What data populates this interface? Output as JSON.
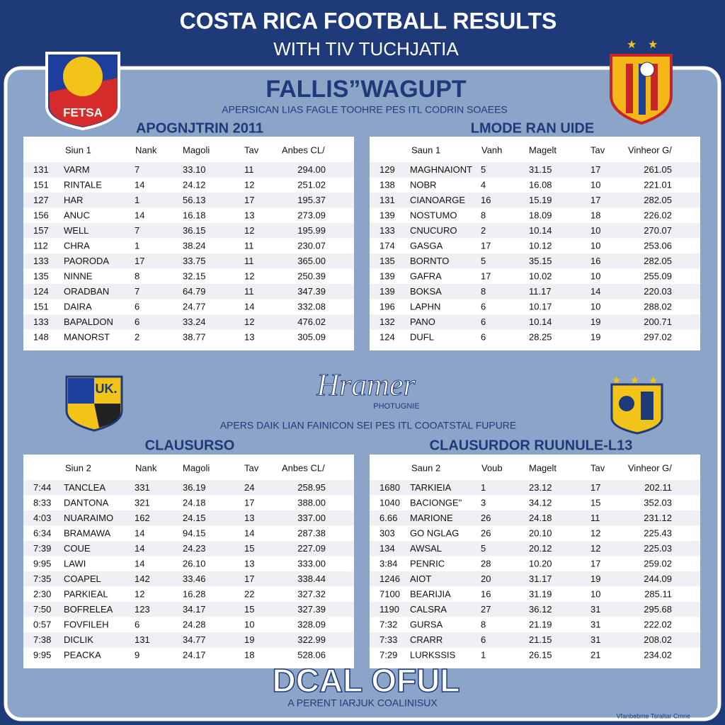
{
  "header": {
    "title": "COSTA RICA FOOTBALL RESULTS",
    "subtitle": "WITH TIV TUCHJATIA"
  },
  "panel": {
    "heading": "FALLIS”WAGUPT",
    "subheading": "APERSICAN LIAS FAGLE TOOHRE PES ITL CODRIN SOAEES"
  },
  "badges": {
    "top_left": "FETSA",
    "middle_left": "UK."
  },
  "middle": {
    "logo": "Hramer",
    "logo_sub": "PHOTUGNIE",
    "subheading": "APERS DAIK LIAN FAINICON SEI PES ITL COOATSTAL FUPURE"
  },
  "tables": [
    {
      "heading": "APOGNJTRIN 2011",
      "columns": [
        "Siun 1",
        "Nank",
        "Magoli",
        "Tav",
        "Anbes CL/"
      ],
      "rows": [
        [
          "131",
          "VARM",
          "7",
          "33.10",
          "11",
          "294.00"
        ],
        [
          "151",
          "RINTALE",
          "14",
          "24.12",
          "12",
          "251.02"
        ],
        [
          "127",
          "HAR",
          "1",
          "56.13",
          "17",
          "195.37"
        ],
        [
          "156",
          "ANUC",
          "14",
          "16.18",
          "13",
          "273.09"
        ],
        [
          "157",
          "WELL",
          "7",
          "36.15",
          "12",
          "195.99"
        ],
        [
          "112",
          "CHRA",
          "1",
          "38.24",
          "11",
          "230.07"
        ],
        [
          "133",
          "PAORODA",
          "17",
          "33.75",
          "11",
          "365.00"
        ],
        [
          "135",
          "NINNE",
          "8",
          "32.15",
          "12",
          "250.39"
        ],
        [
          "124",
          "ORADBAN",
          "7",
          "64.79",
          "11",
          "347.39"
        ],
        [
          "151",
          "DAIRA",
          "6",
          "24.77",
          "14",
          "332.08"
        ],
        [
          "133",
          "BAPALDON",
          "6",
          "33.24",
          "12",
          "476.02"
        ],
        [
          "148",
          "MANORST",
          "2",
          "38.77",
          "13",
          "305.09"
        ]
      ]
    },
    {
      "heading": "LMODE RAN UIDE",
      "columns": [
        "Saun 1",
        "Vanh",
        "Magelt",
        "Tav",
        "Vinheor G/"
      ],
      "rows": [
        [
          "129",
          "MAGHNAIONT",
          "5",
          "31.15",
          "17",
          "261.05"
        ],
        [
          "138",
          "NOBR",
          "4",
          "16.08",
          "10",
          "221.01"
        ],
        [
          "131",
          "CIANOARGE",
          "16",
          "15.19",
          "17",
          "282.05"
        ],
        [
          "139",
          "NOSTUMO",
          "8",
          "18.09",
          "18",
          "226.02"
        ],
        [
          "133",
          "CNUCURO",
          "2",
          "10.14",
          "10",
          "270.07"
        ],
        [
          "174",
          "GASGA",
          "17",
          "10.12",
          "10",
          "253.06"
        ],
        [
          "135",
          "BORNTO",
          "5",
          "35.15",
          "16",
          "282.05"
        ],
        [
          "139",
          "GAFRA",
          "17",
          "10.02",
          "10",
          "255.09"
        ],
        [
          "139",
          "BOKSA",
          "8",
          "11.17",
          "14",
          "220.03"
        ],
        [
          "196",
          "LAPHN",
          "6",
          "10.17",
          "10",
          "288.02"
        ],
        [
          "132",
          "PANO",
          "6",
          "10.14",
          "19",
          "200.71"
        ],
        [
          "124",
          "DUFL",
          "6",
          "28.25",
          "19",
          "297.02"
        ]
      ]
    },
    {
      "heading": "CLAUSURSO",
      "columns": [
        "Siun 2",
        "Nank",
        "Magoli",
        "Tav",
        "Anbes CL/"
      ],
      "rows": [
        [
          "7:44",
          "TANCLEA",
          "331",
          "36.19",
          "24",
          "258.95"
        ],
        [
          "8:33",
          "DANTONA",
          "321",
          "24.18",
          "17",
          "388.00"
        ],
        [
          "4:03",
          "NUARAIMO",
          "162",
          "24.15",
          "13",
          "337.00"
        ],
        [
          "6:34",
          "BRAMAWA",
          "14",
          "94.15",
          "14",
          "287.38"
        ],
        [
          "7:39",
          "COUE",
          "14",
          "24.23",
          "15",
          "227.09"
        ],
        [
          "9:95",
          "LAWI",
          "14",
          "26.10",
          "13",
          "333.00"
        ],
        [
          "7:35",
          "COAPEL",
          "142",
          "33.46",
          "17",
          "338.44"
        ],
        [
          "2:30",
          "PARKIEAL",
          "12",
          "16.28",
          "22",
          "327.32"
        ],
        [
          "7:50",
          "BOFRELEA",
          "123",
          "34.17",
          "15",
          "327.39"
        ],
        [
          "0:57",
          "FOVFILEH",
          "6",
          "24.28",
          "10",
          "328.09"
        ],
        [
          "7:38",
          "DICLIK",
          "131",
          "34.77",
          "19",
          "322.99"
        ],
        [
          "9:95",
          "PEACKA",
          "9",
          "24.17",
          "18",
          "528.06"
        ]
      ]
    },
    {
      "heading": "CLAUSURDOR RUUNULE-L13",
      "columns": [
        "Saun 2",
        "Voub",
        "Magelt",
        "Tav",
        "Vinheor G/"
      ],
      "rows": [
        [
          "1680",
          "TARKIEIA",
          "1",
          "23.12",
          "17",
          "202.11"
        ],
        [
          "1040",
          "BACIONGE\"",
          "3",
          "34.12",
          "15",
          "352.03"
        ],
        [
          "6.66",
          "MARIONE",
          "26",
          "24.18",
          "11",
          "231.12"
        ],
        [
          "303",
          "GO NGLAG",
          "26",
          "20.10",
          "12",
          "225.43"
        ],
        [
          "134",
          "AWSAL",
          "5",
          "20.12",
          "12",
          "225.03"
        ],
        [
          "3:84",
          "PENRIC",
          "28",
          "10.20",
          "17",
          "259.02"
        ],
        [
          "1246",
          "AIOT",
          "20",
          "31.17",
          "19",
          "244.09"
        ],
        [
          "7100",
          "BEARIJIA",
          "16",
          "31.19",
          "10",
          "285.11"
        ],
        [
          "1190",
          "CALSRA",
          "27",
          "36.12",
          "31",
          "295.68"
        ],
        [
          "7:32",
          "GURSA",
          "8",
          "21.19",
          "31",
          "222.02"
        ],
        [
          "7:33",
          "CRARR",
          "6",
          "21.15",
          "31",
          "208.02"
        ],
        [
          "7:29",
          "LURKSSIS",
          "1",
          "26.15",
          "21",
          "234.02"
        ]
      ]
    }
  ],
  "footer": {
    "title": "DCAL OFUL",
    "subtitle": "A PERENT IARJUK COALINISUX",
    "note": "Vfanbebme Tsraltar Cmne"
  }
}
